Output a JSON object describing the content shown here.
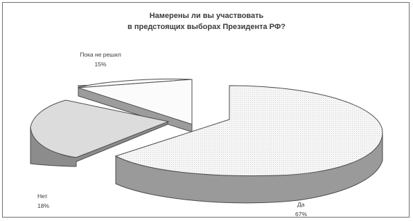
{
  "chart_data": {
    "type": "pie",
    "title": "Намерены ли вы участвовать в предстоящих выборах Президента РФ?",
    "title_lines": [
      "Намерены ли вы участвовать",
      "в предстоящих выборах Президента РФ?"
    ],
    "slices": [
      {
        "label": "Да",
        "value": 67,
        "display": "67%"
      },
      {
        "label": "Нет",
        "value": 18,
        "display": "18%"
      },
      {
        "label": "Пока не решил",
        "value": 15,
        "display": "15%"
      }
    ],
    "colors": {
      "yes_top": "#f4f4f4",
      "yes_side": "#9a9a9a",
      "no_top": "#dcdcdc",
      "no_side": "#8c8c8c",
      "undecided_top": "#fafafa",
      "undecided_side": "#a4a4a4",
      "outline": "#4a4a4a"
    },
    "style": "3d-exploded-pie"
  }
}
